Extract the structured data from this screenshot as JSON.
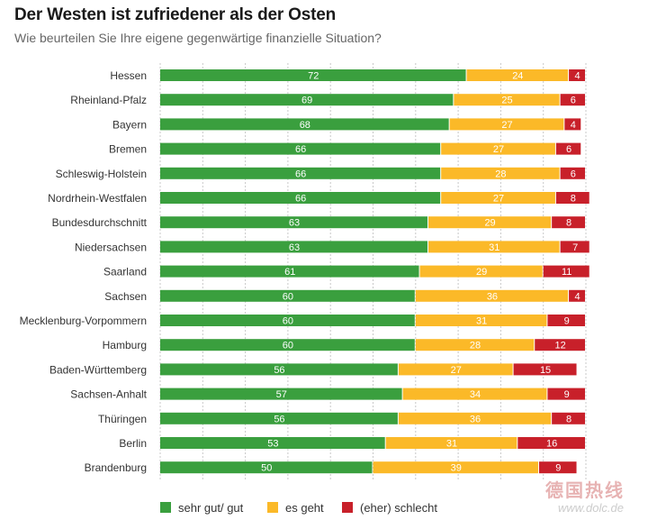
{
  "colors": {
    "good": "#3a9f3e",
    "ok": "#fbb928",
    "bad": "#c8202a",
    "grid": "#c8c8c8"
  },
  "watermark": {
    "cn": "德国热线",
    "url": "www.dolc.de"
  },
  "chart_data": {
    "type": "bar",
    "orientation": "horizontal-stacked",
    "title": "Der Westen ist zufriedener als der Osten",
    "subtitle": "Wie beurteilen Sie Ihre eigene gegenwärtige finanzielle Situation?",
    "xlim": [
      0,
      100
    ],
    "grid": true,
    "legend_position": "bottom",
    "categories": [
      "Hessen",
      "Rheinland-Pfalz",
      "Bayern",
      "Bremen",
      "Schleswig-Holstein",
      "Nordrhein-Westfalen",
      "Bundesdurchschnitt",
      "Niedersachsen",
      "Saarland",
      "Sachsen",
      "Mecklenburg-Vorpommern",
      "Hamburg",
      "Baden-Württemberg",
      "Sachsen-Anhalt",
      "Thüringen",
      "Berlin",
      "Brandenburg"
    ],
    "series": [
      {
        "name": "sehr gut/ gut",
        "key": "good",
        "values": [
          72,
          69,
          68,
          66,
          66,
          66,
          63,
          63,
          61,
          60,
          60,
          60,
          56,
          57,
          56,
          53,
          50
        ]
      },
      {
        "name": "es geht",
        "key": "ok",
        "values": [
          24,
          25,
          27,
          27,
          28,
          27,
          29,
          31,
          29,
          36,
          31,
          28,
          27,
          34,
          36,
          31,
          39
        ]
      },
      {
        "name": "(eher) schlecht",
        "key": "bad",
        "values": [
          4,
          6,
          4,
          6,
          6,
          8,
          8,
          7,
          11,
          4,
          9,
          12,
          15,
          9,
          8,
          16,
          9
        ]
      }
    ]
  }
}
